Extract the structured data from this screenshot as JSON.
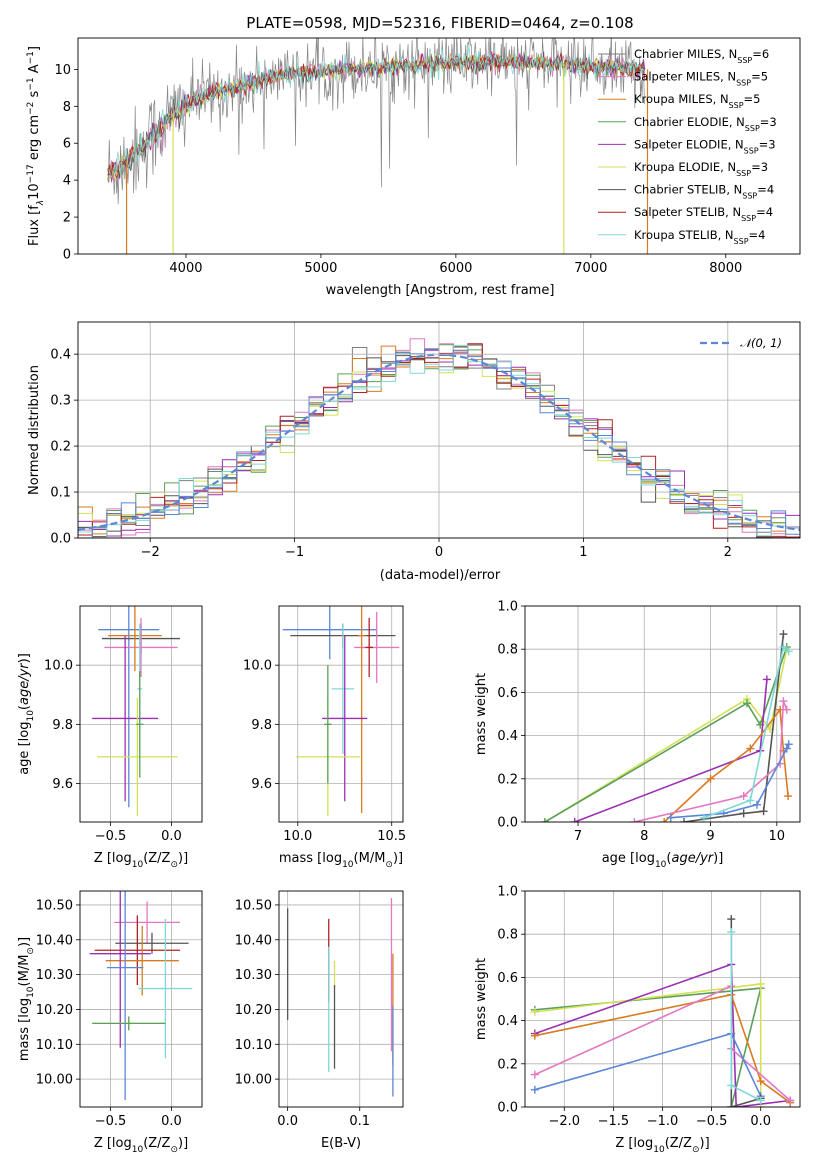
{
  "colors": {
    "chabrier_miles": "#7f7f7f",
    "salpeter_miles": "#e377c2",
    "kroupa_miles": "#d97b21",
    "chabrier_elodie": "#5aa05a",
    "salpeter_elodie": "#9b2fb4",
    "kroupa_elodie": "#d4e157",
    "chabrier_stelib": "#555555",
    "salpeter_stelib": "#b22222",
    "kroupa_stelib": "#7fd8d8",
    "blue_model": "#5b87d6",
    "normal": "#5b87d6"
  },
  "chart_data": [
    {
      "type": "line",
      "title": "PLATE=0598, MJD=52316, FIBERID=0464, z=0.108",
      "xlabel": "wavelength [Angstrom, rest frame]",
      "ylabel_parts": [
        "Flux [f",
        "λ",
        "10",
        "−17",
        " erg cm",
        "−2",
        " s",
        "−1",
        " A",
        "−1",
        "]"
      ],
      "xlim": [
        3200,
        8550
      ],
      "ylim": [
        0,
        11.7
      ],
      "xticks": [
        4000,
        5000,
        6000,
        7000,
        8000
      ],
      "yticks": [
        0,
        2,
        4,
        6,
        8,
        10
      ],
      "continuum": {
        "x": [
          3420,
          3500,
          3600,
          3700,
          3800,
          3900,
          4000,
          4200,
          4400,
          4600,
          4800,
          5000,
          5200,
          5400,
          5600,
          5800,
          6000,
          6200,
          6400,
          6600,
          6800,
          7000,
          7200,
          7400
        ],
        "y": [
          4.4,
          4.7,
          5.3,
          6.0,
          6.8,
          7.5,
          8.1,
          8.7,
          9.1,
          9.5,
          9.8,
          9.9,
          10.0,
          10.1,
          10.2,
          10.3,
          10.35,
          10.4,
          10.35,
          10.35,
          10.3,
          10.2,
          10.1,
          10.0
        ]
      },
      "series": [
        {
          "name": "Chabrier MILES, N",
          "sub": "SSP",
          "suffix": "=6",
          "color_key": "chabrier_miles"
        },
        {
          "name": "Salpeter MILES, N",
          "sub": "SSP",
          "suffix": "=5",
          "color_key": "salpeter_miles"
        },
        {
          "name": "Kroupa MILES, N",
          "sub": "SSP",
          "suffix": "=5",
          "color_key": "kroupa_miles"
        },
        {
          "name": "Chabrier ELODIE, N",
          "sub": "SSP",
          "suffix": "=3",
          "color_key": "chabrier_elodie"
        },
        {
          "name": "Salpeter ELODIE, N",
          "sub": "SSP",
          "suffix": "=3",
          "color_key": "salpeter_elodie"
        },
        {
          "name": "Kroupa ELODIE, N",
          "sub": "SSP",
          "suffix": "=3",
          "color_key": "kroupa_elodie"
        },
        {
          "name": "Chabrier STELIB, N",
          "sub": "SSP",
          "suffix": "=4",
          "color_key": "chabrier_stelib"
        },
        {
          "name": "Salpeter STELIB, N",
          "sub": "SSP",
          "suffix": "=4",
          "color_key": "salpeter_stelib"
        },
        {
          "name": "Kroupa STELIB, N",
          "sub": "SSP",
          "suffix": "=4",
          "color_key": "kroupa_stelib"
        }
      ],
      "vertical_drops": [
        {
          "x": 3560,
          "color_key": "kroupa_miles"
        },
        {
          "x": 3905,
          "color_key": "kroupa_elodie"
        },
        {
          "x": 6800,
          "color_key": "kroupa_elodie"
        },
        {
          "x": 7420,
          "color_key": "kroupa_miles"
        }
      ],
      "legend": "upper right",
      "grid": false
    },
    {
      "type": "bar",
      "xlabel": "(data-model)/error",
      "ylabel": "Normed distribution",
      "xlim": [
        -2.5,
        2.5
      ],
      "ylim": [
        0,
        0.47
      ],
      "xticks": [
        -2,
        -1,
        0,
        1,
        2
      ],
      "yticks": [
        0.0,
        0.1,
        0.2,
        0.3,
        0.4
      ],
      "grid": true,
      "bin_width": 0.1,
      "legend": "upper right",
      "normal_label": "𝒩(0, 1)",
      "normal_mu": 0,
      "normal_sigma": 1
    },
    {
      "type": "scatter",
      "xlabel_parts": [
        "Z [log",
        "10",
        "(Z/Z",
        "⊙",
        ")]"
      ],
      "ylabel_parts": [
        "age  [log",
        "10",
        "(",
        "age/yr",
        ")]"
      ],
      "xlim": [
        -0.75,
        0.25
      ],
      "ylim": [
        9.47,
        10.2
      ],
      "xticks": [
        -0.5,
        0.0
      ],
      "yticks": [
        9.6,
        9.8,
        10.0
      ],
      "grid": true,
      "points": [
        {
          "x": -0.35,
          "y": 10.12,
          "xerr": 0.25,
          "yerr": 0.6,
          "color_key": "blue_model"
        },
        {
          "x": -0.25,
          "y": 10.09,
          "xerr": 0.32,
          "yerr": 0.05,
          "color_key": "chabrier_stelib"
        },
        {
          "x": -0.25,
          "y": 10.06,
          "xerr": 0.3,
          "yerr": 0.1,
          "color_key": "salpeter_miles"
        },
        {
          "x": -0.3,
          "y": 10.1,
          "xerr": 0.22,
          "yerr": 0.12,
          "color_key": "kroupa_miles"
        },
        {
          "x": -0.26,
          "y": 9.92,
          "xerr": 0.02,
          "yerr": 0.22,
          "color_key": "kroupa_stelib"
        },
        {
          "x": -0.38,
          "y": 9.82,
          "xerr": 0.27,
          "yerr": 0.28,
          "color_key": "salpeter_elodie"
        },
        {
          "x": -0.28,
          "y": 9.69,
          "xerr": 0.33,
          "yerr": 0.2,
          "color_key": "kroupa_elodie"
        },
        {
          "x": -0.26,
          "y": 9.8,
          "xerr": 0.03,
          "yerr": 0.18,
          "color_key": "chabrier_elodie"
        }
      ]
    },
    {
      "type": "scatter",
      "xlabel_parts": [
        "mass [log",
        "10",
        "(M/M",
        "⊙",
        ")]"
      ],
      "xlim": [
        9.9,
        10.56
      ],
      "ylim": [
        9.47,
        10.2
      ],
      "xticks": [
        10.0,
        10.5
      ],
      "yticks": [
        9.6,
        9.8,
        10.0
      ],
      "grid": true,
      "points": [
        {
          "x": 10.17,
          "y": 10.12,
          "xerr": 0.25,
          "yerr": 0.1,
          "color_key": "blue_model"
        },
        {
          "x": 10.24,
          "y": 10.1,
          "xerr": 0.28,
          "yerr": 0.04,
          "color_key": "chabrier_stelib"
        },
        {
          "x": 10.42,
          "y": 10.06,
          "xerr": 0.12,
          "yerr": 0.12,
          "color_key": "salpeter_miles"
        },
        {
          "x": 10.34,
          "y": 10.1,
          "xerr": 0.02,
          "yerr": 0.6,
          "color_key": "kroupa_miles"
        },
        {
          "x": 10.24,
          "y": 9.92,
          "xerr": 0.06,
          "yerr": 0.22,
          "color_key": "kroupa_stelib"
        },
        {
          "x": 10.25,
          "y": 9.82,
          "xerr": 0.12,
          "yerr": 0.28,
          "color_key": "salpeter_elodie"
        },
        {
          "x": 10.16,
          "y": 9.69,
          "xerr": 0.17,
          "yerr": 0.2,
          "color_key": "kroupa_elodie"
        },
        {
          "x": 10.16,
          "y": 9.8,
          "xerr": 0.02,
          "yerr": 0.2,
          "color_key": "chabrier_elodie"
        },
        {
          "x": 10.38,
          "y": 10.06,
          "xerr": 0.02,
          "yerr": 0.1,
          "color_key": "salpeter_stelib"
        }
      ]
    },
    {
      "type": "line",
      "xlabel_parts": [
        "age  [log",
        "10",
        "(",
        "age/yr",
        ")]"
      ],
      "ylabel": "mass weight",
      "xlim": [
        6.2,
        10.35
      ],
      "ylim": [
        0,
        1.0
      ],
      "xticks": [
        7,
        8,
        9,
        10
      ],
      "yticks": [
        0.0,
        0.2,
        0.4,
        0.6,
        0.8,
        1.0
      ],
      "grid": true,
      "series": [
        {
          "color_key": "kroupa_elodie",
          "x": [
            6.5,
            9.55,
            9.9,
            10.15
          ],
          "y": [
            0.0,
            0.57,
            0.43,
            0.8
          ]
        },
        {
          "color_key": "chabrier_elodie",
          "x": [
            6.5,
            9.55,
            9.75,
            10.15
          ],
          "y": [
            0.0,
            0.55,
            0.45,
            0.81
          ]
        },
        {
          "color_key": "chabrier_stelib",
          "x": [
            8.6,
            9.5,
            9.8,
            10.1
          ],
          "y": [
            0.0,
            0.04,
            0.05,
            0.87
          ]
        },
        {
          "color_key": "salpeter_elodie",
          "x": [
            6.95,
            9.75,
            9.85
          ],
          "y": [
            0.0,
            0.33,
            0.66
          ]
        },
        {
          "color_key": "kroupa_miles",
          "x": [
            8.3,
            9.0,
            9.6,
            10.05,
            10.1,
            10.17
          ],
          "y": [
            0.0,
            0.2,
            0.34,
            0.52,
            0.33,
            0.12
          ]
        },
        {
          "color_key": "salpeter_miles",
          "x": [
            7.85,
            9.5,
            10.05,
            10.1,
            10.15
          ],
          "y": [
            0.0,
            0.12,
            0.27,
            0.56,
            0.52
          ]
        },
        {
          "color_key": "blue_model",
          "x": [
            8.4,
            9.2,
            9.7,
            10.15,
            10.18
          ],
          "y": [
            0.02,
            0.04,
            0.08,
            0.34,
            0.36
          ]
        },
        {
          "color_key": "kroupa_stelib",
          "x": [
            8.9,
            9.6,
            10.1,
            10.18
          ],
          "y": [
            0.02,
            0.1,
            0.81,
            0.79
          ]
        }
      ]
    },
    {
      "type": "scatter",
      "xlabel_parts": [
        "Z [log",
        "10",
        "(Z/Z",
        "⊙",
        ")]"
      ],
      "ylabel_parts": [
        "mass [log",
        "10",
        "(M/M",
        "⊙",
        ")]"
      ],
      "xlim": [
        -0.75,
        0.25
      ],
      "ylim": [
        9.92,
        10.54
      ],
      "xticks": [
        -0.5,
        0.0
      ],
      "yticks": [
        10.0,
        10.1,
        10.2,
        10.3,
        10.4,
        10.5
      ],
      "grid": true,
      "points": [
        {
          "x": -0.2,
          "y": 10.45,
          "xerr": 0.27,
          "yerr": 0.06,
          "color_key": "salpeter_miles"
        },
        {
          "x": -0.16,
          "y": 10.39,
          "xerr": 0.3,
          "yerr": 0.03,
          "color_key": "chabrier_stelib"
        },
        {
          "x": -0.28,
          "y": 10.37,
          "xerr": 0.35,
          "yerr": 0.1,
          "color_key": "salpeter_stelib"
        },
        {
          "x": -0.24,
          "y": 10.34,
          "xerr": 0.3,
          "yerr": 0.1,
          "color_key": "kroupa_miles"
        },
        {
          "x": -0.42,
          "y": 10.36,
          "xerr": 0.25,
          "yerr": 0.27,
          "color_key": "salpeter_elodie"
        },
        {
          "x": -0.38,
          "y": 10.32,
          "xerr": 0.15,
          "yerr": 0.38,
          "color_key": "blue_model"
        },
        {
          "x": -0.05,
          "y": 10.26,
          "xerr": 0.22,
          "yerr": 0.2,
          "color_key": "kroupa_stelib"
        },
        {
          "x": -0.35,
          "y": 10.16,
          "xerr": 0.3,
          "yerr": 0.02,
          "color_key": "kroupa_elodie"
        },
        {
          "x": -0.35,
          "y": 10.16,
          "xerr": 0.3,
          "yerr": 0.02,
          "color_key": "chabrier_elodie"
        }
      ]
    },
    {
      "type": "scatter",
      "xlabel": "E(B-V)",
      "xlim": [
        -0.012,
        0.16
      ],
      "ylim": [
        9.92,
        10.54
      ],
      "xticks": [
        0.0,
        0.1
      ],
      "yticks": [
        10.0,
        10.1,
        10.2,
        10.3,
        10.4,
        10.5
      ],
      "grid": true,
      "points": [
        {
          "x": 0.0,
          "y": 10.33,
          "yerr": 0.16,
          "color_key": "chabrier_stelib"
        },
        {
          "x": 0.057,
          "y": 10.34,
          "yerr": 0.12,
          "color_key": "salpeter_stelib"
        },
        {
          "x": 0.057,
          "y": 10.2,
          "yerr": 0.18,
          "color_key": "kroupa_stelib"
        },
        {
          "x": 0.065,
          "y": 10.3,
          "yerr": 0.04,
          "color_key": "kroupa_elodie"
        },
        {
          "x": 0.065,
          "y": 10.15,
          "yerr": 0.12,
          "color_key": "chabrier_stelib"
        },
        {
          "x": 0.144,
          "y": 10.3,
          "yerr": 0.22,
          "color_key": "salpeter_miles"
        },
        {
          "x": 0.146,
          "y": 10.2,
          "yerr": 0.16,
          "color_key": "kroupa_miles"
        },
        {
          "x": 0.146,
          "y": 10.08,
          "yerr": 0.13,
          "color_key": "blue_model"
        }
      ]
    },
    {
      "type": "line",
      "xlabel_parts": [
        "Z [log",
        "10",
        "(Z/Z",
        "⊙",
        ")]"
      ],
      "ylabel": "mass weight",
      "xlim": [
        -2.4,
        0.4
      ],
      "ylim": [
        0,
        1.0
      ],
      "xticks": [
        -2.0,
        -1.5,
        -1.0,
        -0.5,
        0.0
      ],
      "yticks": [
        0.0,
        0.2,
        0.4,
        0.6,
        0.8,
        1.0
      ],
      "grid": true,
      "series": [
        {
          "color_key": "chabrier_elodie",
          "x": [
            -2.3,
            0.0,
            -0.3
          ],
          "y": [
            0.45,
            0.55,
            0.0
          ]
        },
        {
          "color_key": "kroupa_elodie",
          "x": [
            -2.3,
            0.0,
            0.0
          ],
          "y": [
            0.44,
            0.57,
            0.0
          ]
        },
        {
          "color_key": "salpeter_elodie",
          "x": [
            -2.3,
            -0.3,
            -0.25,
            0.3
          ],
          "y": [
            0.34,
            0.66,
            0.0,
            0.03
          ]
        },
        {
          "color_key": "kroupa_miles",
          "x": [
            -2.3,
            -0.3,
            0.0,
            0.3
          ],
          "y": [
            0.33,
            0.52,
            0.12,
            0.02
          ]
        },
        {
          "color_key": "salpeter_miles",
          "x": [
            -2.3,
            -0.3,
            -0.3,
            0.3
          ],
          "y": [
            0.15,
            0.56,
            0.27,
            0.03
          ]
        },
        {
          "color_key": "blue_model",
          "x": [
            -2.3,
            -0.3,
            0.0
          ],
          "y": [
            0.08,
            0.34,
            0.05
          ]
        },
        {
          "color_key": "chabrier_stelib",
          "x": [
            -0.3,
            -0.3,
            0.0
          ],
          "y": [
            0.87,
            0.0,
            0.04
          ]
        },
        {
          "color_key": "kroupa_stelib",
          "x": [
            -0.3,
            -0.3,
            0.0
          ],
          "y": [
            0.81,
            0.1,
            0.03
          ]
        }
      ]
    }
  ]
}
